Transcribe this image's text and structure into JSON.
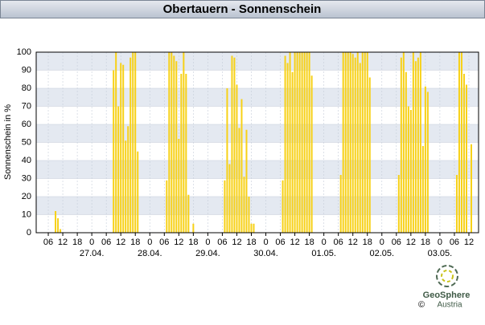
{
  "chart_data": {
    "type": "bar",
    "title": "Obertauern - Sonnenschein",
    "y_label": "Sonnenschein in %",
    "color": "#f7d117",
    "x": [
      9,
      10,
      11,
      33,
      34,
      35,
      36,
      37,
      38,
      39,
      40,
      41,
      42,
      43,
      55,
      56,
      57,
      58,
      59,
      60,
      61,
      62,
      63,
      64,
      66,
      79,
      80,
      81,
      82,
      83,
      84,
      85,
      86,
      87,
      88,
      89,
      90,
      91,
      103,
      104,
      105,
      106,
      107,
      108,
      109,
      110,
      111,
      112,
      113,
      114,
      115,
      127,
      128,
      129,
      130,
      131,
      132,
      133,
      134,
      135,
      136,
      137,
      138,
      139,
      151,
      152,
      153,
      154,
      155,
      156,
      157,
      158,
      159,
      160,
      161,
      162,
      163,
      175,
      176,
      177,
      178,
      179,
      181
    ],
    "values": [
      12,
      8,
      2,
      90,
      100,
      70,
      94,
      93,
      51,
      59,
      97,
      100,
      100,
      45,
      29,
      100,
      100,
      98,
      95,
      52,
      88,
      100,
      88,
      21,
      5,
      29,
      80,
      38,
      98,
      97,
      82,
      58,
      74,
      31,
      57,
      20,
      5,
      5,
      29,
      98,
      94,
      100,
      89,
      100,
      100,
      100,
      100,
      100,
      100,
      100,
      87,
      32,
      100,
      100,
      100,
      100,
      99,
      97,
      100,
      94,
      100,
      100,
      100,
      86,
      32,
      97,
      100,
      89,
      70,
      68,
      100,
      95,
      97,
      100,
      48,
      81,
      78,
      32,
      100,
      100,
      88,
      82,
      49
    ],
    "xlim": [
      1,
      184
    ],
    "xticks": [
      {
        "value": 6,
        "label": "06"
      },
      12,
      18,
      {
        "value": 24,
        "label": "0"
      },
      {
        "value": 30,
        "label": "06"
      },
      {
        "value": 36,
        "label": "12"
      },
      {
        "value": 42,
        "label": "18"
      },
      {
        "value": 48,
        "label": "0"
      },
      {
        "value": 54,
        "label": "06"
      },
      {
        "value": 60,
        "label": "12"
      },
      {
        "value": 66,
        "label": "18"
      },
      {
        "value": 72,
        "label": "0"
      },
      {
        "value": 78,
        "label": "06"
      },
      {
        "value": 84,
        "label": "12"
      },
      {
        "value": 90,
        "label": "18"
      },
      {
        "value": 96,
        "label": "0"
      },
      {
        "value": 102,
        "label": "06"
      },
      {
        "value": 108,
        "label": "12"
      },
      {
        "value": 114,
        "label": "18"
      },
      {
        "value": 120,
        "label": "0"
      },
      {
        "value": 126,
        "label": "06"
      },
      {
        "value": 132,
        "label": "12"
      },
      {
        "value": 138,
        "label": "18"
      },
      {
        "value": 144,
        "label": "0"
      },
      {
        "value": 150,
        "label": "06"
      },
      {
        "value": 156,
        "label": "12"
      },
      {
        "value": 162,
        "label": "18"
      },
      {
        "value": 168,
        "label": "0"
      },
      {
        "value": 174,
        "label": "06"
      },
      {
        "value": 180,
        "label": "12"
      }
    ],
    "day_labels": [
      {
        "value": 24,
        "label": "27.04."
      },
      {
        "value": 48,
        "label": "28.04."
      },
      {
        "value": 72,
        "label": "29.04."
      },
      {
        "value": 96,
        "label": "30.04."
      },
      {
        "value": 120,
        "label": "01.05."
      },
      {
        "value": 144,
        "label": "02.05."
      },
      {
        "value": 168,
        "label": "03.05."
      }
    ],
    "ylim": [
      0,
      100
    ],
    "yticks": [
      0,
      10,
      20,
      30,
      40,
      50,
      60,
      70,
      80,
      90,
      100
    ],
    "grid": true
  },
  "logo": {
    "name": "GeoSphere",
    "sub": "Austria",
    "copyright": "©"
  }
}
